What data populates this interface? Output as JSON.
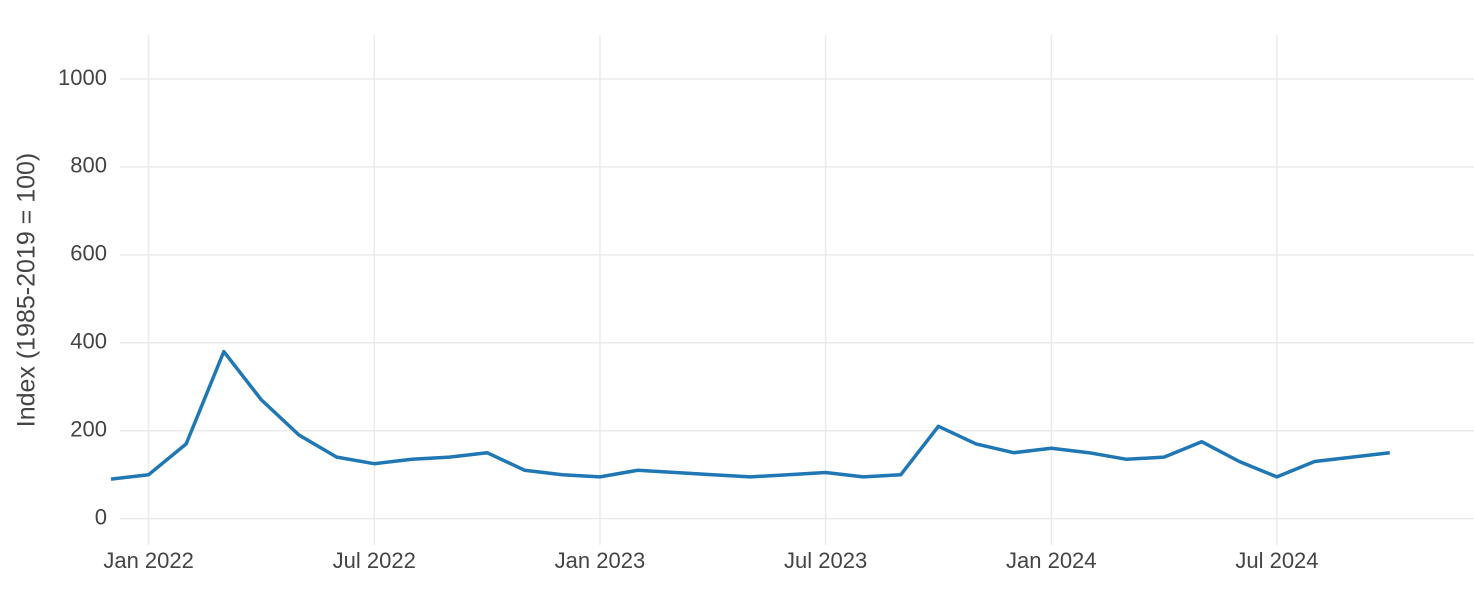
{
  "chart_data": {
    "type": "line",
    "y_axis_label": "Index (1985-2019 = 100)",
    "x": [
      "2021-12",
      "2022-01",
      "2022-02",
      "2022-03",
      "2022-04",
      "2022-05",
      "2022-06",
      "2022-07",
      "2022-08",
      "2022-09",
      "2022-10",
      "2022-11",
      "2022-12",
      "2023-01",
      "2023-02",
      "2023-03",
      "2023-04",
      "2023-05",
      "2023-06",
      "2023-07",
      "2023-08",
      "2023-09",
      "2023-10",
      "2023-11",
      "2023-12",
      "2024-01",
      "2024-02",
      "2024-03",
      "2024-04",
      "2024-05",
      "2024-06",
      "2024-07",
      "2024-08",
      "2024-09",
      "2024-10"
    ],
    "series": [
      {
        "color": "#1f77b4",
        "values": [
          90,
          100,
          170,
          380,
          270,
          190,
          140,
          125,
          135,
          140,
          150,
          110,
          100,
          95,
          110,
          105,
          100,
          95,
          100,
          105,
          95,
          100,
          210,
          170,
          150,
          160,
          150,
          135,
          140,
          175,
          130,
          95,
          130,
          140,
          150
        ]
      }
    ],
    "xlim": [
      "2021-12",
      "2024-12"
    ],
    "xticks": [
      {
        "value": "2022-01",
        "label": "Jan 2022"
      },
      {
        "value": "2022-07",
        "label": "Jul 2022"
      },
      {
        "value": "2023-01",
        "label": "Jan 2023"
      },
      {
        "value": "2023-07",
        "label": "Jul 2023"
      },
      {
        "value": "2024-01",
        "label": "Jan 2024"
      },
      {
        "value": "2024-07",
        "label": "Jul 2024"
      }
    ],
    "ylim": [
      -60,
      1100
    ],
    "yticks": [
      0,
      200,
      400,
      600,
      800,
      1000
    ],
    "grid": true
  }
}
